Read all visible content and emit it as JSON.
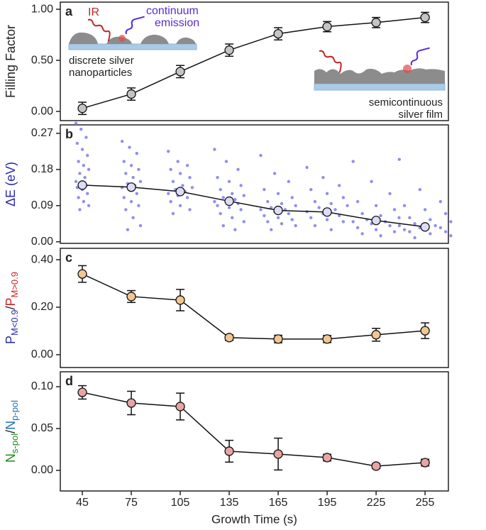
{
  "chart_data": [
    {
      "type": "line",
      "label": "a",
      "ylabel": "Filling Factor",
      "x": [
        45,
        75,
        105,
        135,
        165,
        195,
        225,
        255
      ],
      "values": [
        0.03,
        0.17,
        0.39,
        0.6,
        0.76,
        0.83,
        0.87,
        0.92
      ],
      "errors": [
        0.06,
        0.06,
        0.06,
        0.06,
        0.06,
        0.05,
        0.05,
        0.05
      ],
      "color": "#c4c4c4",
      "xlim": [
        31.5,
        269.3
      ],
      "ylim": [
        -0.09,
        1.07
      ],
      "yticks": [
        {
          "value": 0,
          "label": "0.00"
        },
        {
          "value": 0.5,
          "label": "0.50"
        },
        {
          "value": 1,
          "label": "1.00"
        }
      ],
      "annotations": {
        "ir": "IR",
        "continuum": [
          "continuum",
          "emission"
        ],
        "discrete": [
          "discrete silver",
          "nanoparticles"
        ],
        "semicontinuous": [
          "semicontinuous",
          "silver film"
        ]
      }
    },
    {
      "type": "strip",
      "label": "b",
      "ylabel": "ΔE (eV)",
      "ylabel_color": "#2b2bb0",
      "x": [
        45,
        75,
        105,
        135,
        165,
        195,
        225,
        255
      ],
      "values": [
        0.141,
        0.136,
        0.125,
        0.101,
        0.078,
        0.074,
        0.053,
        0.037
      ],
      "points": [
        [
          0.295,
          0.28,
          0.26,
          0.245,
          0.23,
          0.215,
          0.2,
          0.19,
          0.18,
          0.17,
          0.16,
          0.15,
          0.145,
          0.14,
          0.135,
          0.13,
          0.12,
          0.11,
          0.1,
          0.09,
          0.08
        ],
        [
          0.25,
          0.235,
          0.22,
          0.2,
          0.19,
          0.18,
          0.17,
          0.16,
          0.15,
          0.145,
          0.14,
          0.135,
          0.13,
          0.12,
          0.11,
          0.1,
          0.09,
          0.08,
          0.06,
          0.04,
          0.03
        ],
        [
          0.225,
          0.2,
          0.19,
          0.18,
          0.17,
          0.16,
          0.15,
          0.14,
          0.135,
          0.13,
          0.125,
          0.12,
          0.115,
          0.11,
          0.1,
          0.09,
          0.08,
          0.07
        ],
        [
          0.23,
          0.2,
          0.18,
          0.16,
          0.15,
          0.14,
          0.13,
          0.12,
          0.115,
          0.11,
          0.105,
          0.1,
          0.1,
          0.095,
          0.09,
          0.085,
          0.08,
          0.07,
          0.06,
          0.05,
          0.04,
          0.03
        ],
        [
          0.215,
          0.17,
          0.15,
          0.13,
          0.12,
          0.11,
          0.1,
          0.095,
          0.09,
          0.085,
          0.08,
          0.08,
          0.075,
          0.07,
          0.065,
          0.06,
          0.055,
          0.05,
          0.045,
          0.04,
          0.03
        ],
        [
          0.185,
          0.16,
          0.14,
          0.13,
          0.12,
          0.11,
          0.1,
          0.095,
          0.09,
          0.085,
          0.08,
          0.075,
          0.07,
          0.065,
          0.06,
          0.055,
          0.05,
          0.04,
          0.03
        ],
        [
          0.2,
          0.15,
          0.12,
          0.1,
          0.09,
          0.08,
          0.07,
          0.065,
          0.06,
          0.055,
          0.05,
          0.05,
          0.045,
          0.04,
          0.035,
          0.03,
          0.025,
          0.02,
          0.015
        ],
        [
          0.205,
          0.13,
          0.1,
          0.09,
          0.08,
          0.07,
          0.06,
          0.055,
          0.05,
          0.045,
          0.04,
          0.04,
          0.035,
          0.035,
          0.03,
          0.03,
          0.025,
          0.025,
          0.02,
          0.015,
          0.01
        ]
      ],
      "color": "#dcdcf7",
      "point_color": "#8e8ef0",
      "xlim": [
        31.5,
        269.3
      ],
      "ylim": [
        -0.004,
        0.291
      ],
      "yticks": [
        {
          "value": 0,
          "label": "0.00"
        },
        {
          "value": 0.09,
          "label": "0.09"
        },
        {
          "value": 0.18,
          "label": "0.18"
        },
        {
          "value": 0.27,
          "label": "0.27"
        }
      ]
    },
    {
      "type": "line",
      "label": "c",
      "ylabel_parts": [
        {
          "text": "P",
          "color": "#2b2ba8"
        },
        {
          "text": "M<0.9",
          "color": "#2b2ba8",
          "sub": true
        },
        {
          "text": "/",
          "color": "#222222"
        },
        {
          "text": "P",
          "color": "#d42020"
        },
        {
          "text": "M>0.9",
          "color": "#d42020",
          "sub": true
        }
      ],
      "x": [
        45,
        75,
        105,
        135,
        165,
        195,
        225,
        255
      ],
      "values": [
        0.34,
        0.245,
        0.23,
        0.072,
        0.066,
        0.066,
        0.084,
        0.101
      ],
      "errors": [
        0.035,
        0.025,
        0.045,
        0.012,
        0.016,
        0.015,
        0.027,
        0.033
      ],
      "color": "#f2c690",
      "xlim": [
        31.5,
        269.3
      ],
      "ylim": [
        -0.054,
        0.448
      ],
      "yticks": [
        {
          "value": 0,
          "label": "0.00"
        },
        {
          "value": 0.2,
          "label": "0.20"
        },
        {
          "value": 0.4,
          "label": "0.40"
        }
      ]
    },
    {
      "type": "line",
      "label": "d",
      "xlabel": "Growth Time (s)",
      "ylabel_parts": [
        {
          "text": "N",
          "color": "#1d8a1d"
        },
        {
          "text": "s-pol",
          "color": "#1d8a1d",
          "sub": true
        },
        {
          "text": "/",
          "color": "#222222"
        },
        {
          "text": "N",
          "color": "#1f6fb4"
        },
        {
          "text": "p-pol",
          "color": "#1f6fb4",
          "sub": true
        }
      ],
      "x": [
        45,
        75,
        105,
        135,
        165,
        195,
        225,
        255
      ],
      "values": [
        0.0932,
        0.0805,
        0.0763,
        0.0229,
        0.0195,
        0.0153,
        0.0051,
        0.0093
      ],
      "errors": [
        0.008,
        0.014,
        0.016,
        0.013,
        0.019,
        0.004,
        0.003,
        0.004
      ],
      "color": "#e8a4a4",
      "xlim": [
        31.5,
        269.3
      ],
      "ylim": [
        -0.0246,
        0.1178
      ],
      "xticks": [
        45,
        75,
        105,
        135,
        165,
        195,
        225,
        255
      ],
      "yticks": [
        {
          "value": 0,
          "label": "0.00"
        },
        {
          "value": 0.05,
          "label": "0.05"
        },
        {
          "value": 0.1,
          "label": "0.10"
        }
      ]
    }
  ]
}
